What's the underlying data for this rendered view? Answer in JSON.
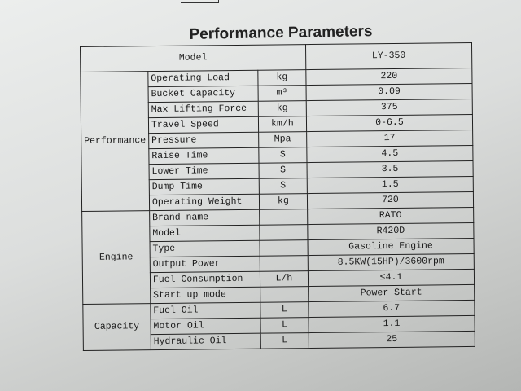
{
  "title": "Performance Parameters",
  "header": {
    "model_label": "Model",
    "model_value": "LY-350"
  },
  "groups": [
    {
      "name": "Performance",
      "rows": [
        {
          "param": "Operating Load",
          "unit": "kg",
          "value": "220"
        },
        {
          "param": "Bucket Capacity",
          "unit": "m³",
          "value": "0.09"
        },
        {
          "param": "Max Lifting Force",
          "unit": "kg",
          "value": "375"
        },
        {
          "param": "Travel Speed",
          "unit": "km/h",
          "value": "0-6.5"
        },
        {
          "param": "Pressure",
          "unit": "Mpa",
          "value": "17"
        },
        {
          "param": "Raise Time",
          "unit": "S",
          "value": "4.5"
        },
        {
          "param": "Lower Time",
          "unit": "S",
          "value": "3.5"
        },
        {
          "param": "Dump Time",
          "unit": "S",
          "value": "1.5"
        },
        {
          "param": "Operating Weight",
          "unit": "kg",
          "value": "720"
        }
      ]
    },
    {
      "name": "Engine",
      "rows": [
        {
          "param": "Brand name",
          "unit": "",
          "value": "RATO"
        },
        {
          "param": "Model",
          "unit": "",
          "value": "R420D"
        },
        {
          "param": "Type",
          "unit": "",
          "value": "Gasoline Engine"
        },
        {
          "param": "Output Power",
          "unit": "",
          "value": "8.5KW(15HP)/3600rpm"
        },
        {
          "param": "Fuel Consumption",
          "unit": "L/h",
          "value": "≤4.1"
        },
        {
          "param": "Start up mode",
          "unit": "",
          "value": "Power Start"
        }
      ]
    },
    {
      "name": "Capacity",
      "rows": [
        {
          "param": "Fuel Oil",
          "unit": "L",
          "value": "6.7"
        },
        {
          "param": "Motor Oil",
          "unit": "L",
          "value": "1.1"
        },
        {
          "param": "Hydraulic Oil",
          "unit": "L",
          "value": "25"
        }
      ]
    }
  ]
}
